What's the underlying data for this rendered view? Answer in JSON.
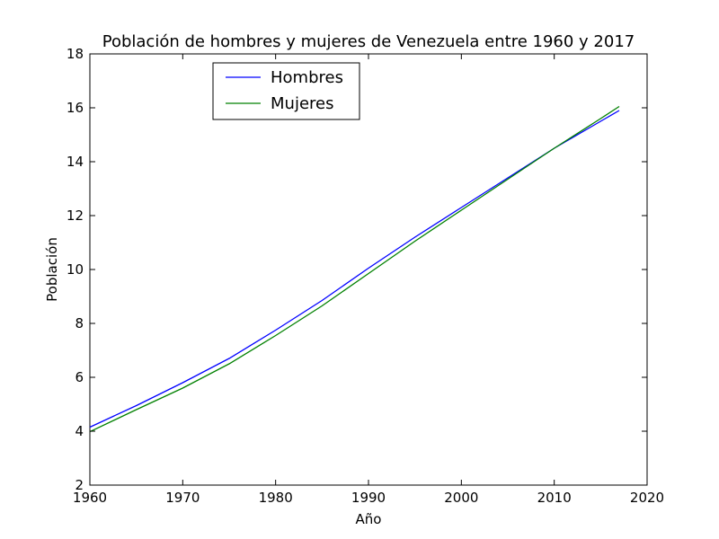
{
  "chart_data": {
    "type": "line",
    "title": "Población de hombres y mujeres de Venezuela entre 1960 y 2017",
    "xlabel": "Año",
    "ylabel": "Población",
    "xlim": [
      1960,
      2020
    ],
    "ylim": [
      2,
      18
    ],
    "xticks": [
      1960,
      1970,
      1980,
      1990,
      2000,
      2010,
      2020
    ],
    "yticks": [
      2,
      4,
      6,
      8,
      10,
      12,
      14,
      16,
      18
    ],
    "grid": false,
    "legend_position": "top-left",
    "series": [
      {
        "name": "Hombres",
        "color": "#0000ff",
        "x": [
          1960,
          1965,
          1970,
          1975,
          1980,
          1985,
          1990,
          1995,
          2000,
          2005,
          2010,
          2015,
          2017
        ],
        "y": [
          4.15,
          4.95,
          5.8,
          6.7,
          7.75,
          8.85,
          10.05,
          11.2,
          12.3,
          13.4,
          14.5,
          15.5,
          15.9
        ]
      },
      {
        "name": "Mujeres",
        "color": "#008000",
        "x": [
          1960,
          1965,
          1970,
          1975,
          1980,
          1985,
          1990,
          1995,
          2000,
          2005,
          2010,
          2015,
          2017
        ],
        "y": [
          3.98,
          4.8,
          5.6,
          6.5,
          7.55,
          8.65,
          9.85,
          11.05,
          12.2,
          13.35,
          14.5,
          15.6,
          16.05
        ]
      }
    ]
  }
}
